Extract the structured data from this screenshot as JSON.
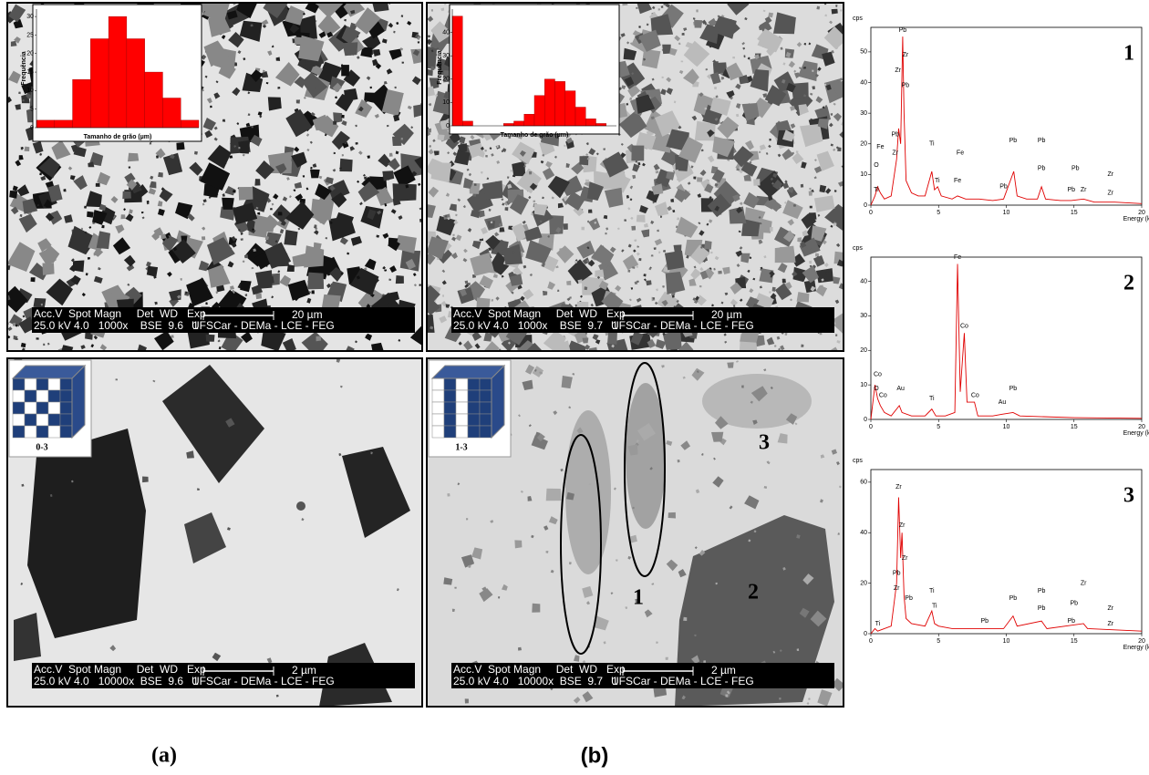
{
  "chart_data": [
    {
      "type": "histogram",
      "xlabel": "Tamanho de grão (µm)",
      "ylabel": "Frequência",
      "bins": [
        0,
        1,
        2,
        3,
        4,
        5,
        6,
        7,
        8,
        9
      ],
      "values": [
        2,
        2,
        13,
        24,
        30,
        24,
        15,
        8,
        2
      ],
      "color": "#ff0000",
      "xlim": [
        0,
        9
      ],
      "ylim": [
        0,
        32
      ],
      "yticks": [
        0,
        5,
        10,
        15,
        20,
        25,
        30
      ]
    },
    {
      "type": "histogram",
      "xlabel": "Tamanho de grão (µm)",
      "ylabel": "Frequência",
      "bins": [
        0,
        1,
        2,
        3,
        4,
        5,
        6,
        7,
        8,
        9,
        10,
        11,
        12,
        13,
        14,
        15,
        16
      ],
      "values": [
        47,
        2,
        0,
        0,
        0,
        1,
        2,
        5,
        13,
        20,
        19,
        15,
        8,
        3,
        1,
        0
      ],
      "color": "#ff0000",
      "xlim": [
        0,
        16
      ],
      "ylim": [
        0,
        50
      ],
      "yticks": [
        0,
        10,
        20,
        30,
        40
      ]
    },
    {
      "type": "line",
      "label": "1",
      "xlabel": "Energy (keV)",
      "ylabel": "cps",
      "color": "#e00000",
      "xlim": [
        0,
        20
      ],
      "xticks": [
        0,
        5,
        10,
        15,
        20
      ],
      "ylim": [
        0,
        58
      ],
      "yticks": [
        0,
        10,
        20,
        30,
        40,
        50
      ],
      "x": [
        0,
        0.3,
        0.5,
        0.7,
        1.0,
        1.5,
        1.9,
        2.05,
        2.2,
        2.35,
        2.45,
        2.6,
        3.0,
        3.5,
        4.0,
        4.5,
        4.7,
        4.93,
        5.2,
        6.0,
        6.4,
        7.0,
        8.0,
        9.0,
        9.8,
        10.55,
        10.8,
        11.5,
        12.3,
        12.6,
        12.9,
        14.0,
        14.8,
        15.7,
        16.5,
        18.0,
        20
      ],
      "values": [
        0,
        3,
        6,
        4,
        2,
        3,
        15,
        25,
        20,
        55,
        30,
        8,
        4,
        3,
        3,
        11,
        5,
        6,
        3,
        2,
        3,
        2,
        2,
        1.5,
        2,
        11,
        3,
        2,
        2,
        6,
        2,
        1.5,
        1.5,
        2,
        1,
        1,
        0.5
      ],
      "annotations": [
        {
          "text": "Pb",
          "x": 2.35,
          "y": 57
        },
        {
          "text": "Zr",
          "x": 2.55,
          "y": 49
        },
        {
          "text": "Zr",
          "x": 2.0,
          "y": 44
        },
        {
          "text": "Pb",
          "x": 2.55,
          "y": 39
        },
        {
          "text": "Pb",
          "x": 1.8,
          "y": 23
        },
        {
          "text": "Zr",
          "x": 1.8,
          "y": 17
        },
        {
          "text": "Fe",
          "x": 0.7,
          "y": 19
        },
        {
          "text": "O",
          "x": 0.4,
          "y": 13
        },
        {
          "text": "Ti",
          "x": 0.4,
          "y": 5
        },
        {
          "text": "Ti",
          "x": 4.5,
          "y": 20
        },
        {
          "text": "Ti",
          "x": 4.9,
          "y": 8
        },
        {
          "text": "Fe",
          "x": 6.6,
          "y": 17
        },
        {
          "text": "Fe",
          "x": 6.4,
          "y": 8
        },
        {
          "text": "Pb",
          "x": 10.5,
          "y": 21
        },
        {
          "text": "Pb",
          "x": 9.8,
          "y": 6
        },
        {
          "text": "Pb",
          "x": 12.6,
          "y": 21
        },
        {
          "text": "Pb",
          "x": 12.6,
          "y": 12
        },
        {
          "text": "Pb",
          "x": 15.1,
          "y": 12
        },
        {
          "text": "Pb",
          "x": 14.8,
          "y": 5
        },
        {
          "text": "Zr",
          "x": 15.7,
          "y": 5
        },
        {
          "text": "Zr",
          "x": 17.7,
          "y": 10
        },
        {
          "text": "Zr",
          "x": 17.7,
          "y": 4
        }
      ]
    },
    {
      "type": "line",
      "label": "2",
      "xlabel": "Energy (keV)",
      "ylabel": "cps",
      "color": "#e00000",
      "xlim": [
        0,
        20
      ],
      "xticks": [
        0,
        5,
        10,
        15,
        20
      ],
      "ylim": [
        0,
        47
      ],
      "yticks": [
        0,
        10,
        20,
        30,
        40
      ],
      "x": [
        0,
        0.3,
        0.5,
        0.7,
        1.0,
        1.5,
        2.1,
        2.3,
        3.0,
        4.0,
        4.5,
        4.8,
        5.5,
        6.2,
        6.4,
        6.6,
        6.9,
        7.1,
        7.65,
        7.9,
        9.0,
        9.7,
        10.5,
        11.0,
        15.0,
        20
      ],
      "values": [
        0,
        10,
        6,
        4,
        2,
        1,
        4,
        2,
        1,
        1,
        3,
        1,
        1,
        2,
        45,
        8,
        25,
        5,
        5,
        1,
        1,
        1.5,
        2,
        1,
        0.5,
        0.3
      ],
      "annotations": [
        {
          "text": "Fe",
          "x": 6.4,
          "y": 47
        },
        {
          "text": "Co",
          "x": 6.9,
          "y": 27
        },
        {
          "text": "Co",
          "x": 0.5,
          "y": 13
        },
        {
          "text": "O",
          "x": 0.4,
          "y": 9
        },
        {
          "text": "Co",
          "x": 0.9,
          "y": 7
        },
        {
          "text": "Au",
          "x": 2.2,
          "y": 9
        },
        {
          "text": "Ti",
          "x": 4.5,
          "y": 6
        },
        {
          "text": "Co",
          "x": 7.7,
          "y": 7
        },
        {
          "text": "Au",
          "x": 9.7,
          "y": 5
        },
        {
          "text": "Pb",
          "x": 10.5,
          "y": 9
        }
      ]
    },
    {
      "type": "line",
      "label": "3",
      "xlabel": "Energy (keV)",
      "ylabel": "cps",
      "color": "#e00000",
      "xlim": [
        0,
        20
      ],
      "xticks": [
        0,
        5,
        10,
        15,
        20
      ],
      "ylim": [
        0,
        65
      ],
      "yticks": [
        0,
        20,
        40,
        60
      ],
      "x": [
        0,
        0.3,
        0.5,
        1.0,
        1.5,
        1.9,
        2.05,
        2.2,
        2.3,
        2.45,
        2.6,
        3.0,
        4.0,
        4.5,
        4.7,
        5.0,
        6.0,
        8.0,
        9.8,
        10.5,
        10.8,
        12.6,
        13.0,
        15.7,
        16.0,
        18.0,
        20
      ],
      "values": [
        0,
        2,
        1,
        2,
        3,
        20,
        54,
        30,
        40,
        15,
        6,
        4,
        3,
        9,
        4,
        3,
        2,
        2,
        2,
        7,
        3,
        5,
        2,
        4,
        2,
        1.5,
        1
      ],
      "annotations": [
        {
          "text": "Zr",
          "x": 2.05,
          "y": 58
        },
        {
          "text": "Zr",
          "x": 2.3,
          "y": 43
        },
        {
          "text": "Zr",
          "x": 2.5,
          "y": 30
        },
        {
          "text": "Pb",
          "x": 1.9,
          "y": 24
        },
        {
          "text": "Zr",
          "x": 1.9,
          "y": 18
        },
        {
          "text": "Pb",
          "x": 2.8,
          "y": 14
        },
        {
          "text": "Ti",
          "x": 0.5,
          "y": 4
        },
        {
          "text": "Ti",
          "x": 4.5,
          "y": 17
        },
        {
          "text": "Ti",
          "x": 4.7,
          "y": 11
        },
        {
          "text": "Pb",
          "x": 8.4,
          "y": 5
        },
        {
          "text": "Pb",
          "x": 10.5,
          "y": 14
        },
        {
          "text": "Pb",
          "x": 12.6,
          "y": 17
        },
        {
          "text": "Pb",
          "x": 12.6,
          "y": 10
        },
        {
          "text": "Pb",
          "x": 15.0,
          "y": 12
        },
        {
          "text": "Pb",
          "x": 14.8,
          "y": 5
        },
        {
          "text": "Zr",
          "x": 15.7,
          "y": 20
        },
        {
          "text": "Zr",
          "x": 17.7,
          "y": 10
        },
        {
          "text": "Zr",
          "x": 17.7,
          "y": 4
        }
      ]
    }
  ],
  "figure": {
    "panels": [
      {
        "line1": "Acc.V  Spot Magn     Det  WD   Exp",
        "line2": "25.0 kV 4.0   1000x    BSE  9.6   1",
        "scale": "20 µm",
        "lab": "UFSCar - DEMa - LCE - FEG"
      },
      {
        "line1": "Acc.V  Spot Magn     Det  WD   Exp",
        "line2": "25.0 kV 4.0   1000x    BSE  9.7   1",
        "scale": "20 µm",
        "lab": "UFSCar - DEMa - LCE - FEG"
      },
      {
        "line1": "Acc.V  Spot Magn     Det  WD   Exp",
        "line2": "25.0 kV 4.0   10000x  BSE  9.6   1",
        "scale": "2 µm",
        "lab": "UFSCar - DEMa - LCE - FEG",
        "cube": "0-3"
      },
      {
        "line1": "Acc.V  Spot Magn     Det  WD   Exp",
        "line2": "25.0 kV 4.0   10000x  BSE  9.7   1",
        "scale": "2 µm",
        "lab": "UFSCar - DEMa - LCE - FEG",
        "cube": "1-3"
      }
    ],
    "region_labels": [
      "1",
      "2",
      "3"
    ],
    "captions": [
      "(a)",
      "(b)"
    ]
  }
}
